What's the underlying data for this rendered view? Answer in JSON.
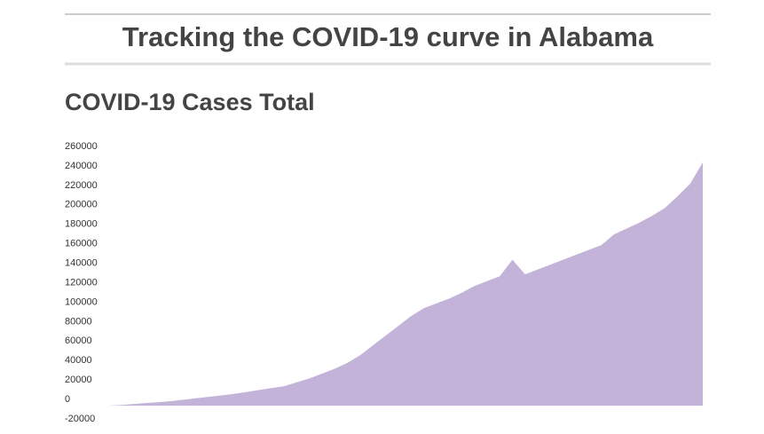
{
  "header": {
    "title": "Tracking the COVID-19 curve in Alabama"
  },
  "chart_data": {
    "type": "area",
    "title": "COVID-19 Cases Total",
    "color": "#c3b3d8",
    "values": [
      0,
      500,
      1500,
      2500,
      3500,
      4500,
      6000,
      7500,
      9000,
      10500,
      12000,
      14000,
      16000,
      18000,
      20000,
      24000,
      28000,
      33000,
      38000,
      44000,
      52000,
      62000,
      72000,
      82000,
      92000,
      100000,
      105000,
      110000,
      116000,
      123000,
      128000,
      133000,
      150000,
      135000,
      140000,
      145000,
      150000,
      155000,
      160000,
      165000,
      176000,
      182000,
      188000,
      195000,
      203000,
      215000,
      228000,
      250000
    ],
    "ylim": [
      -20000,
      260000
    ],
    "yticks": [
      -20000,
      0,
      20000,
      40000,
      60000,
      80000,
      100000,
      120000,
      140000,
      160000,
      180000,
      200000,
      220000,
      240000,
      260000
    ]
  }
}
